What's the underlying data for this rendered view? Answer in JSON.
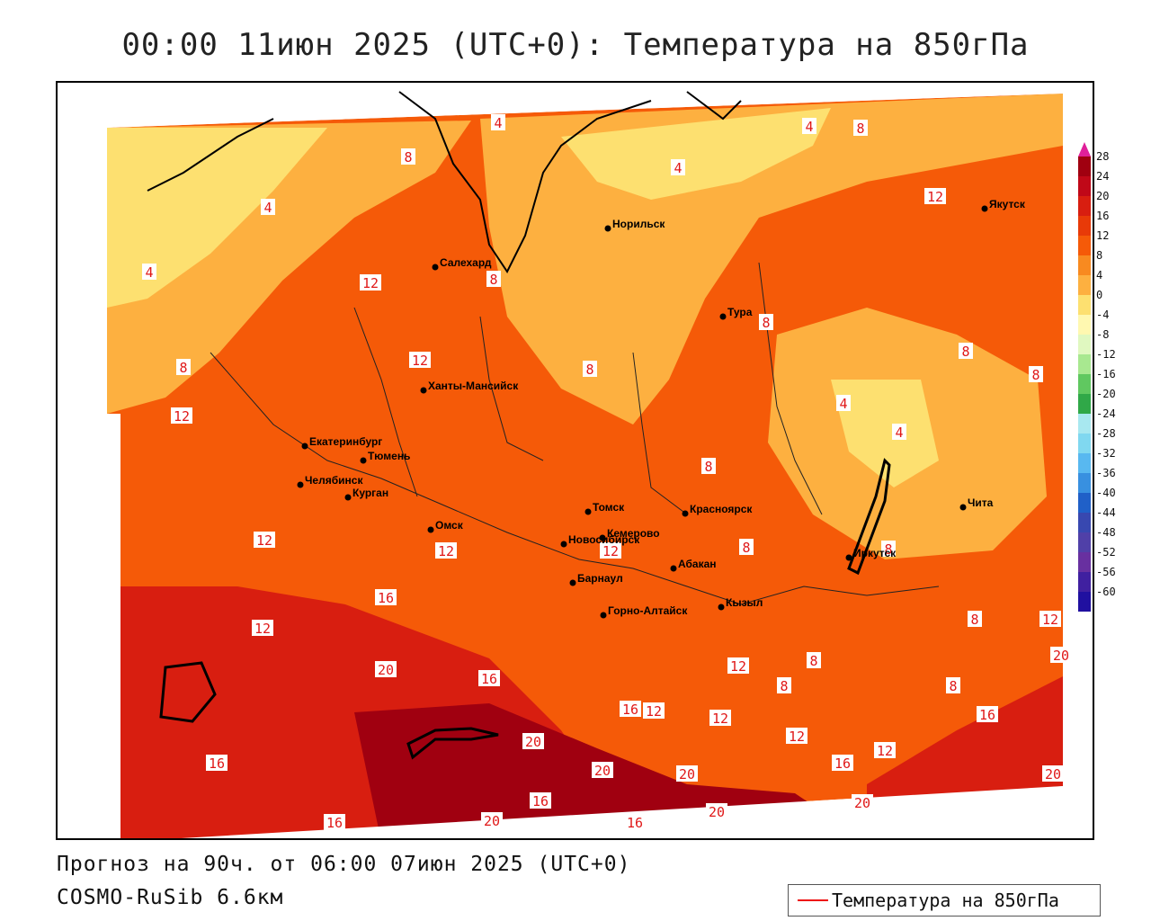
{
  "title": "00:00 11июн 2025 (UTC+0): Температура на 850гПа",
  "forecast_line": "Прогноз на 90ч. от 06:00 07июн 2025 (UTC+0)",
  "model_line": "COSMO-RuSib 6.6км",
  "legend": {
    "label": "Температура на 850гПа",
    "line_color": "#ee2222"
  },
  "colorbar": {
    "ticks": [
      "28",
      "24",
      "20",
      "16",
      "12",
      "8",
      "4",
      "0",
      "-4",
      "-8",
      "-12",
      "-16",
      "-20",
      "-24",
      "-28",
      "-32",
      "-36",
      "-40",
      "-44",
      "-48",
      "-52",
      "-56",
      "-60"
    ],
    "colors": [
      "#a00010",
      "#c00818",
      "#d81e10",
      "#e83a08",
      "#f55a08",
      "#f88a20",
      "#fdb040",
      "#fde070",
      "#fff8b0",
      "#e0f8c0",
      "#a8e890",
      "#60c860",
      "#30a848",
      "#a8e8f0",
      "#80d8f0",
      "#58b8f0",
      "#3890e0",
      "#2060c8",
      "#3848b0",
      "#5040a8",
      "#6830a0",
      "#4020a0",
      "#2010a0"
    ]
  },
  "cities": [
    {
      "name": "Норильск"
    },
    {
      "name": "Якутск"
    },
    {
      "name": "Салехард"
    },
    {
      "name": "Тура"
    },
    {
      "name": "Ханты-Мансийск"
    },
    {
      "name": "Екатеринбург"
    },
    {
      "name": "Тюмень"
    },
    {
      "name": "Челябинск"
    },
    {
      "name": "Курган"
    },
    {
      "name": "Омск"
    },
    {
      "name": "Новосибирск"
    },
    {
      "name": "Томск"
    },
    {
      "name": "Кемерово"
    },
    {
      "name": "Красноярск"
    },
    {
      "name": "Барнаул"
    },
    {
      "name": "Абакан"
    },
    {
      "name": "Горно-Алтайск"
    },
    {
      "name": "Кызыл"
    },
    {
      "name": "Иркутск"
    },
    {
      "name": "Чита"
    }
  ],
  "contour_labels": [
    "4",
    "8",
    "12",
    "16",
    "20"
  ]
}
